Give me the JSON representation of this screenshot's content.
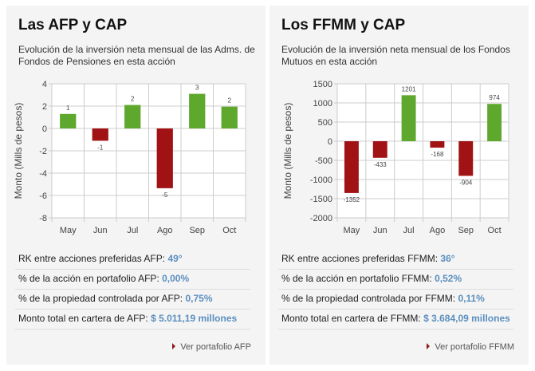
{
  "colors": {
    "positive": "#5ea82e",
    "negative": "#a01214",
    "value_text": "#5b8fbf"
  },
  "panels": [
    {
      "title": "Las AFP y CAP",
      "description": "Evolución de la inversión neta mensual de las Adms. de Fondos de Pensiones en esta acción",
      "stats": [
        {
          "label": "RK entre acciones preferidas AFP: ",
          "value": "49°"
        },
        {
          "label": "% de la acción en portafolio AFP: ",
          "value": "0,00%"
        },
        {
          "label": "% de la propiedad controlada por AFP: ",
          "value": "0,75%"
        },
        {
          "label": "Monto total en cartera de AFP: ",
          "value": "$ 5.011,19 millones"
        }
      ],
      "link": "Ver portafolio AFP"
    },
    {
      "title": "Los FFMM y CAP",
      "description": "Evolución de la inversión neta mensual de los Fondos Mutuos en esta acción",
      "stats": [
        {
          "label": "RK entre acciones preferidas FFMM: ",
          "value": "36°"
        },
        {
          "label": "% de la acción en portafolio FFMM: ",
          "value": "0,52%"
        },
        {
          "label": "% de la propiedad controlada por FFMM: ",
          "value": "0,11%"
        },
        {
          "label": "Monto total en cartera de FFMM: ",
          "value": "$ 3.684,09 millones"
        }
      ],
      "link": "Ver portafolio FFMM"
    }
  ],
  "chart_data": [
    {
      "type": "bar",
      "categories": [
        "May",
        "Jun",
        "Jul",
        "Ago",
        "Sep",
        "Oct"
      ],
      "values": [
        1.3,
        -1.1,
        2.1,
        -5.35,
        3.1,
        1.95
      ],
      "data_labels": [
        "1",
        "-1",
        "2",
        "-5",
        "3",
        "2"
      ],
      "ylabel": "Monto (Mills de pesos)",
      "ylim": [
        -8,
        4
      ],
      "yticks": [
        4,
        2,
        0,
        -2,
        -4,
        -6,
        -8
      ],
      "grid": true
    },
    {
      "type": "bar",
      "categories": [
        "May",
        "Jun",
        "Jul",
        "Ago",
        "Sep",
        "Oct"
      ],
      "values": [
        -1352,
        -433,
        1201,
        -168,
        -904,
        974
      ],
      "data_labels": [
        "-1352",
        "-433",
        "1201",
        "-168",
        "-904",
        "974"
      ],
      "ylabel": "Monto (Mills de pesos)",
      "ylim": [
        -2000,
        1500
      ],
      "yticks": [
        1500,
        1000,
        500,
        0,
        -500,
        -1000,
        -1500,
        -2000
      ],
      "grid": true
    }
  ]
}
